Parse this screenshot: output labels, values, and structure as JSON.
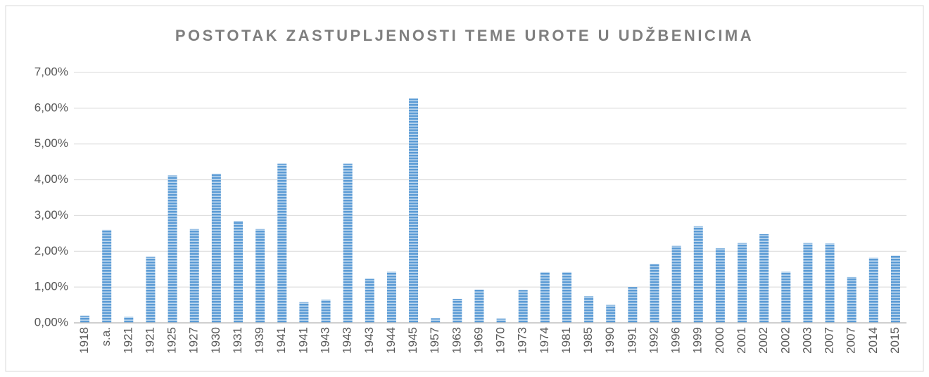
{
  "chart_data": {
    "type": "bar",
    "title": "POSTOTAK ZASTUPLJENOSTI TEME UROTE U UDŽBENICIMA",
    "categories": [
      "1918",
      "s.a.",
      "1921",
      "1921",
      "1925",
      "1927",
      "1930",
      "1931",
      "1939",
      "1941",
      "1941",
      "1943",
      "1943",
      "1943",
      "1944",
      "1945",
      "1957",
      "1963",
      "1969",
      "1970",
      "1973",
      "1974",
      "1981",
      "1985",
      "1990",
      "1991",
      "1992",
      "1996",
      "1999",
      "2000",
      "2001",
      "2002",
      "2002",
      "2003",
      "2007",
      "2007",
      "2014",
      "2015"
    ],
    "values": [
      0.2,
      2.6,
      0.17,
      1.85,
      4.12,
      2.62,
      4.17,
      2.85,
      2.62,
      4.45,
      0.58,
      0.65,
      4.45,
      1.23,
      1.43,
      6.27,
      0.13,
      0.67,
      0.93,
      0.12,
      0.92,
      1.42,
      1.42,
      0.74,
      0.5,
      1.0,
      1.65,
      2.15,
      2.7,
      2.08,
      2.23,
      2.48,
      1.43,
      2.23,
      2.22,
      1.28,
      1.82,
      1.88
    ],
    "color": "#5b9bd5",
    "ylim": [
      0,
      7
    ],
    "yticks": [
      {
        "value": 0,
        "label": "0,00%"
      },
      {
        "value": 1,
        "label": "1,00%"
      },
      {
        "value": 2,
        "label": "2,00%"
      },
      {
        "value": 3,
        "label": "3,00%"
      },
      {
        "value": 4,
        "label": "4,00%"
      },
      {
        "value": 5,
        "label": "5,00%"
      },
      {
        "value": 6,
        "label": "6,00%"
      },
      {
        "value": 7,
        "label": "7,00%"
      }
    ],
    "grid": true
  }
}
